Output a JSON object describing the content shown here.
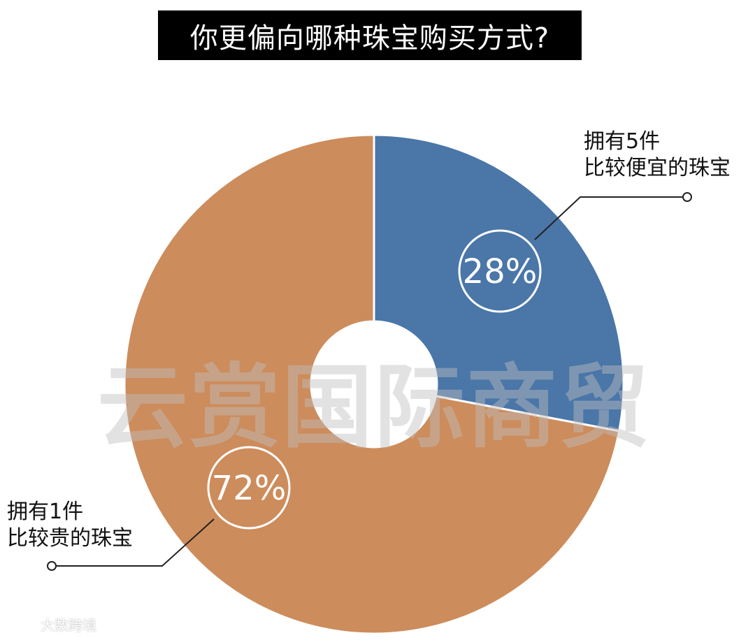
{
  "header": {
    "title": "你更偏向哪种珠宝购买方式?"
  },
  "watermark": "云赏国际商贸",
  "source_mark": {
    "text": "大数跨境",
    "icon": "logo-icon"
  },
  "colors": {
    "blue": "#4a76a8",
    "orange": "#cd8c5c"
  },
  "chart_data": {
    "type": "pie",
    "title": "你更偏向哪种珠宝购买方式?",
    "slices": [
      {
        "label_line1": "拥有5件",
        "label_line2": "比较便宜的珠宝",
        "value": 28,
        "percent_label": "28%",
        "color": "#4a76a8"
      },
      {
        "label_line1": "拥有1件",
        "label_line2": "比较贵的珠宝",
        "value": 72,
        "percent_label": "72%",
        "color": "#cd8c5c"
      }
    ]
  }
}
